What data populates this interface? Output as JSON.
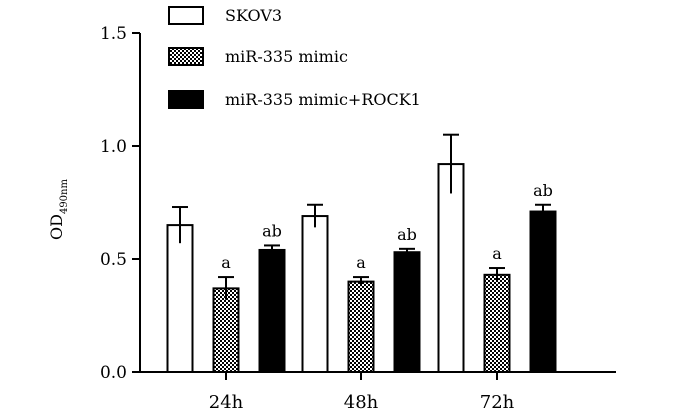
{
  "chart_data": {
    "type": "bar",
    "categories": [
      "24h",
      "48h",
      "72h"
    ],
    "ylabel": "OD",
    "ylabel_subscript": "490nm",
    "ylim": [
      0.0,
      1.5
    ],
    "yticks": [
      "0.0",
      "0.5",
      "1.0",
      "1.5"
    ],
    "legend_position": "top",
    "series": [
      {
        "name": "SKOV3",
        "pattern": "white",
        "values": [
          0.65,
          0.69,
          0.92
        ],
        "errors": [
          0.08,
          0.05,
          0.13
        ],
        "annotations": [
          "",
          "",
          ""
        ]
      },
      {
        "name": "miR-335 mimic",
        "pattern": "checkered",
        "values": [
          0.37,
          0.4,
          0.43
        ],
        "errors": [
          0.05,
          0.02,
          0.03
        ],
        "annotations": [
          "a",
          "a",
          "a"
        ]
      },
      {
        "name": "miR-335 mimic+ROCK1",
        "pattern": "black",
        "values": [
          0.54,
          0.53,
          0.71
        ],
        "errors": [
          0.02,
          0.015,
          0.03
        ],
        "annotations": [
          "ab",
          "ab",
          "ab"
        ]
      }
    ]
  }
}
